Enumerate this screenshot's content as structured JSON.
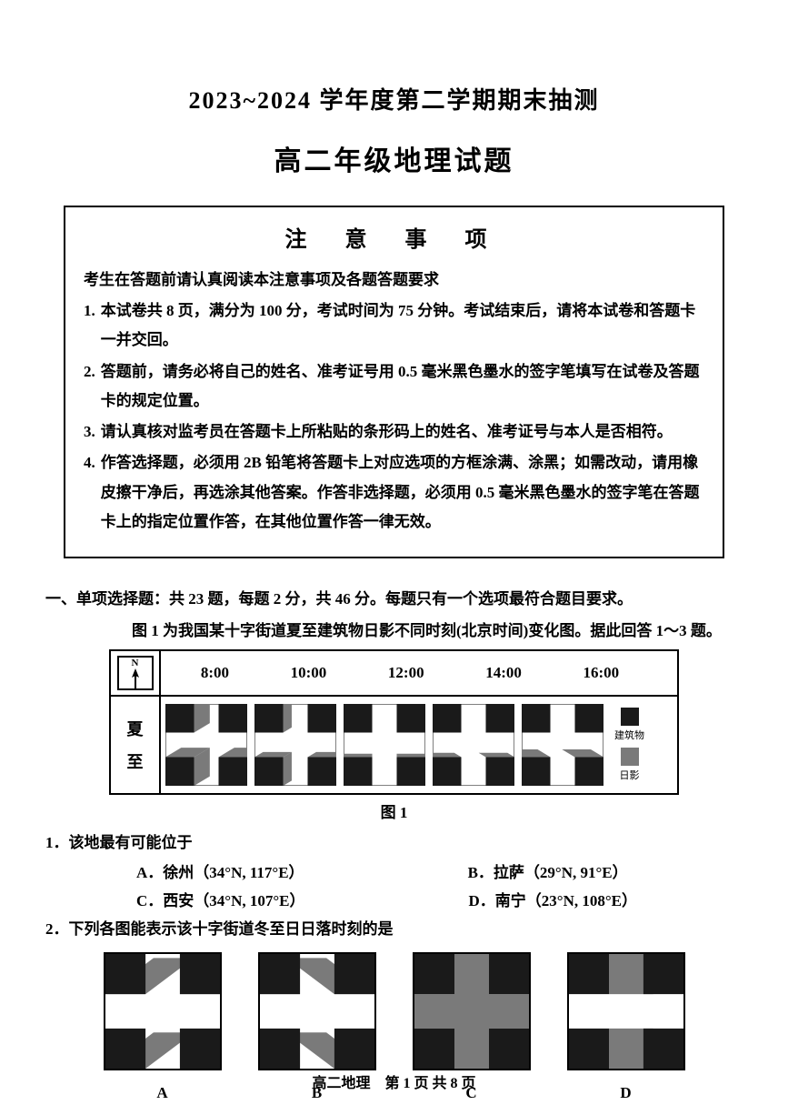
{
  "header": {
    "year_title": "2023~2024 学年度第二学期期末抽测",
    "exam_title": "高二年级地理试题"
  },
  "notice": {
    "heading": "注 意 事 项",
    "preface": "考生在答题前请认真阅读本注意事项及各题答题要求",
    "items": [
      {
        "n": "1.",
        "t": "本试卷共 8 页，满分为 100 分，考试时间为 75 分钟。考试结束后，请将本试卷和答题卡一并交回。"
      },
      {
        "n": "2.",
        "t": "答题前，请务必将自己的姓名、准考证号用 0.5 毫米黑色墨水的签字笔填写在试卷及答题卡的规定位置。"
      },
      {
        "n": "3.",
        "t": "请认真核对监考员在答题卡上所粘贴的条形码上的姓名、准考证号与本人是否相符。"
      },
      {
        "n": "4.",
        "t": "作答选择题，必须用 2B 铅笔将答题卡上对应选项的方框涂满、涂黑；如需改动，请用橡皮擦干净后，再选涂其他答案。作答非选择题，必须用 0.5 毫米黑色墨水的签字笔在答题卡上的指定位置作答，在其他位置作答一律无效。"
      }
    ]
  },
  "section1": {
    "title": "一、单项选择题：共 23 题，每题 2 分，共 46 分。每题只有一个选项最符合题目要求。",
    "context": "图 1 为我国某十字街道夏至建筑物日影不同时刻(北京时间)变化图。据此回答 1～3 题。"
  },
  "figure1": {
    "compass_label": "N",
    "season_chars": [
      "夏",
      "至"
    ],
    "times": [
      "8:00",
      "10:00",
      "12:00",
      "14:00",
      "16:00"
    ],
    "legend": {
      "building": "建筑物",
      "shadow": "日影"
    },
    "colors": {
      "building": "#1a1a1a",
      "shadow": "#7a7a7a",
      "border": "#000000",
      "bg": "#ffffff"
    },
    "shadows": [
      {
        "dir": "sw",
        "len": 0.55
      },
      {
        "dir": "sw",
        "len": 0.3
      },
      {
        "dir": "s",
        "len": 0.2
      },
      {
        "dir": "se",
        "len": 0.25
      },
      {
        "dir": "se",
        "len": 0.45
      }
    ],
    "caption": "图 1"
  },
  "q1": {
    "stem": "1．该地最有可能位于",
    "opts": {
      "A": "A．徐州（34°N, 117°E）",
      "B": "B．拉萨（29°N, 91°E）",
      "C": "C．西安（34°N, 107°E）",
      "D": "D．南宁（23°N, 108°E）"
    }
  },
  "q2": {
    "stem": "2．下列各图能表示该十字街道冬至日日落时刻的是",
    "labels": [
      "A",
      "B",
      "C",
      "D"
    ],
    "figs": [
      {
        "shadow_dir": "ne_long"
      },
      {
        "shadow_dir": "nw_long"
      },
      {
        "shadow_dir": "plus_dark"
      },
      {
        "shadow_dir": "e_long"
      }
    ],
    "colors": {
      "building": "#1a1a1a",
      "shadow": "#7a7a7a"
    }
  },
  "footer": {
    "pagetext": "高二地理　第 1 页 共 8 页"
  }
}
